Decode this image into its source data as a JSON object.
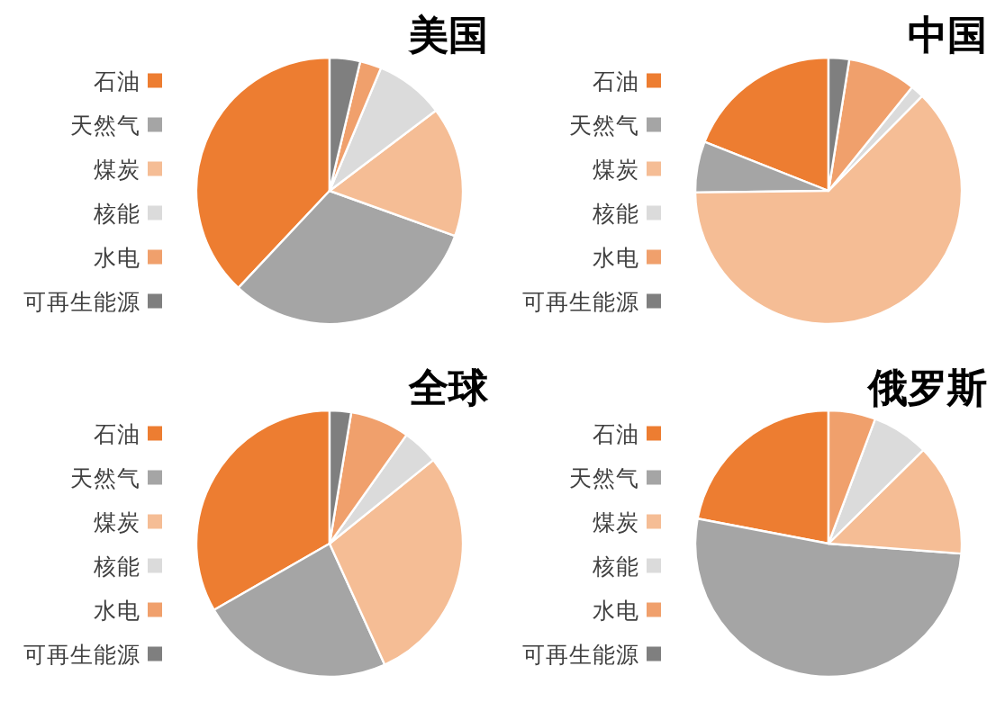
{
  "chart_data": [
    {
      "type": "pie",
      "title": "美国",
      "categories": [
        "石油",
        "天然气",
        "煤炭",
        "核能",
        "水电",
        "可再生能源"
      ],
      "values": [
        38.0,
        31.5,
        15.8,
        8.4,
        2.6,
        3.7
      ],
      "colors": [
        "#ed7d31",
        "#a5a5a5",
        "#f5bd95",
        "#dbdbdb",
        "#f0a06c",
        "#7f7f7f"
      ],
      "legend": "left"
    },
    {
      "type": "pie",
      "title": "中国",
      "categories": [
        "石油",
        "天然气",
        "煤炭",
        "核能",
        "水电",
        "可再生能源"
      ],
      "values": [
        19.0,
        6.2,
        62.4,
        1.6,
        8.3,
        2.5
      ],
      "colors": [
        "#ed7d31",
        "#a5a5a5",
        "#f5bd95",
        "#dbdbdb",
        "#f0a06c",
        "#7f7f7f"
      ],
      "legend": "left"
    },
    {
      "type": "pie",
      "title": "全球",
      "categories": [
        "石油",
        "天然气",
        "煤炭",
        "核能",
        "水电",
        "可再生能源"
      ],
      "values": [
        33.3,
        23.5,
        29.0,
        4.4,
        7.2,
        2.6
      ],
      "colors": [
        "#ed7d31",
        "#a5a5a5",
        "#f5bd95",
        "#dbdbdb",
        "#f0a06c",
        "#7f7f7f"
      ],
      "legend": "left"
    },
    {
      "type": "pie",
      "title": "俄罗斯",
      "categories": [
        "石油",
        "天然气",
        "煤炭",
        "核能",
        "水电",
        "可再生能源"
      ],
      "values": [
        22.0,
        51.8,
        13.6,
        6.9,
        5.7,
        0
      ],
      "colors": [
        "#ed7d31",
        "#a5a5a5",
        "#f5bd95",
        "#dbdbdb",
        "#f0a06c",
        "#7f7f7f"
      ],
      "legend": "left"
    }
  ]
}
